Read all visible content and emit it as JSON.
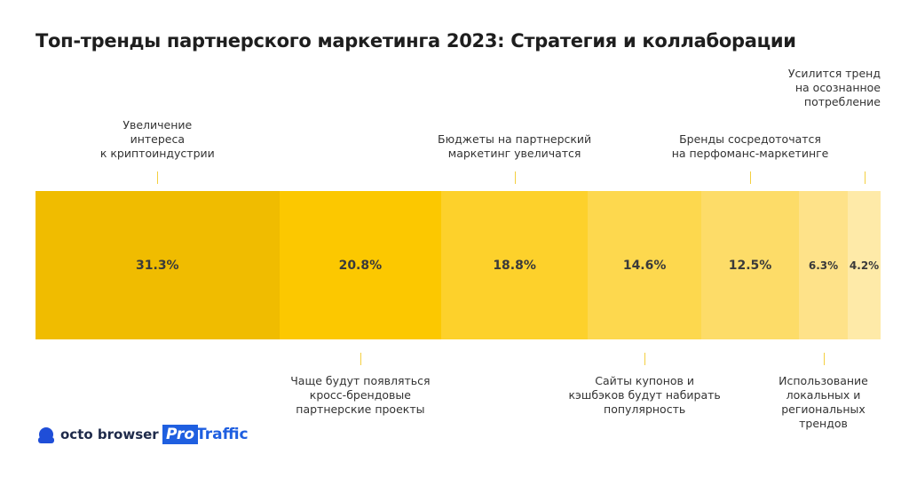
{
  "chart_data": {
    "type": "stacked-share-bar",
    "title": "Топ-тренды партнерского маркетинга 2023: Стратегия и коллаборации",
    "categories": [
      "Увеличение\nинтереса\nк криптоиндустрии",
      "Чаще будут появляться\nкросс-брендовые\nпартнерские проекты",
      "Бюджеты на партнерский\nмаркетинг увеличатся",
      "Сайты купонов и\nкэшбэков будут набирать\nпопулярность",
      "Бренды сосредоточатся\nна перфоманс-маркетинге",
      "Использование\nлокальных и\nрегиональных\nтрендов",
      "Усилится тренд\nна осознанное\nпотребление"
    ],
    "values": [
      31.3,
      20.8,
      18.8,
      14.6,
      12.5,
      6.3,
      4.2
    ],
    "value_labels": [
      "31.3%",
      "20.8%",
      "18.8%",
      "14.6%",
      "12.5%",
      "6.3%",
      "4.2%"
    ],
    "colors": [
      "#f0bc00",
      "#fcc800",
      "#fdd12b",
      "#fdd84e",
      "#fddc68",
      "#fee289",
      "#feeaa8"
    ],
    "logos": [
      "octo browser",
      "Pro",
      "Traffic"
    ]
  }
}
